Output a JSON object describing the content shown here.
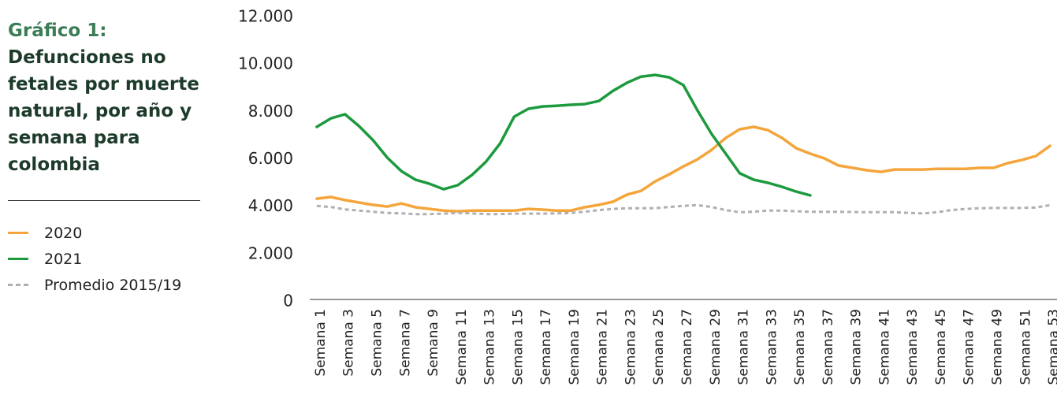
{
  "chart_data": {
    "type": "line",
    "label": "Gráfico 1:",
    "title": "Defunciones no fetales por muerte natural, por año y semana para colombia",
    "categories": [
      "Semana 1",
      null,
      "Semana 3",
      null,
      "Semana 5",
      null,
      "Semana 7",
      null,
      "Semana 9",
      null,
      "Semana 11",
      null,
      "Semana 13",
      null,
      "Semana 15",
      null,
      "Semana 17",
      null,
      "Semana 19",
      null,
      "Semana 21",
      null,
      "Semana 23",
      null,
      "Semana 25",
      null,
      "Semana 27",
      null,
      "Semana 29",
      null,
      "Semana 31",
      null,
      "Semana 33",
      null,
      "Semana 35",
      null,
      "Semana 37",
      null,
      "Semana 39",
      null,
      "Semana 41",
      null,
      "Semana 43",
      null,
      "Semana 45",
      null,
      "Semana 47",
      null,
      "Semana 49",
      null,
      "Semana 51",
      null,
      "Semana 53"
    ],
    "series": [
      {
        "name": "2020",
        "color": "#f4a53b",
        "dash": false,
        "values": [
          4350,
          4420,
          4290,
          4190,
          4090,
          4020,
          4150,
          3990,
          3920,
          3850,
          3820,
          3850,
          3850,
          3850,
          3850,
          3920,
          3890,
          3850,
          3850,
          3990,
          4090,
          4220,
          4520,
          4680,
          5080,
          5380,
          5710,
          6010,
          6410,
          6910,
          7280,
          7380,
          7240,
          6910,
          6480,
          6250,
          6050,
          5750,
          5650,
          5550,
          5480,
          5580,
          5580,
          5580,
          5610,
          5610,
          5610,
          5650,
          5650,
          5850,
          5980,
          6150,
          6580
        ]
      },
      {
        "name": "2021",
        "color": "#1e9a3e",
        "dash": false,
        "values": [
          7380,
          7740,
          7910,
          7410,
          6810,
          6080,
          5510,
          5150,
          4980,
          4750,
          4920,
          5350,
          5910,
          6680,
          7810,
          8140,
          8240,
          8270,
          8310,
          8340,
          8470,
          8900,
          9240,
          9500,
          9570,
          9470,
          9140,
          8070,
          7080,
          6250,
          5420,
          5150,
          5020,
          4850,
          4650,
          4490,
          null,
          null,
          null,
          null,
          null,
          null,
          null,
          null,
          null,
          null,
          null,
          null,
          null,
          null,
          null,
          null,
          null
        ]
      },
      {
        "name": "Promedio 2015/19",
        "color": "#b0b0b0",
        "dash": true,
        "values": [
          4050,
          4000,
          3900,
          3850,
          3800,
          3750,
          3730,
          3700,
          3700,
          3720,
          3750,
          3730,
          3700,
          3700,
          3720,
          3720,
          3720,
          3730,
          3750,
          3800,
          3870,
          3920,
          3950,
          3950,
          3950,
          4000,
          4050,
          4080,
          4000,
          3870,
          3780,
          3800,
          3850,
          3850,
          3820,
          3800,
          3800,
          3800,
          3790,
          3780,
          3780,
          3780,
          3750,
          3730,
          3780,
          3870,
          3920,
          3950,
          3960,
          3960,
          3960,
          3980,
          4080
        ]
      }
    ],
    "ylim": [
      0,
      12000
    ],
    "yticks": [
      0,
      {
        "value": 2000,
        "label": "2.000"
      },
      {
        "value": 4000,
        "label": "4.000"
      },
      {
        "value": 6000,
        "label": "6.000"
      },
      {
        "value": 8000,
        "label": "8.000"
      },
      {
        "value": 10000,
        "label": "10.000"
      },
      {
        "value": 12000,
        "label": "12.000"
      }
    ],
    "grid": false
  }
}
